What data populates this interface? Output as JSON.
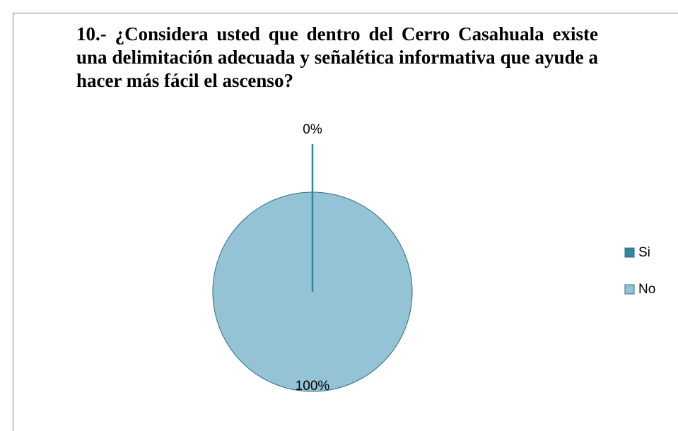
{
  "chart_data": {
    "type": "pie",
    "title": "10.- ¿Considera usted que dentro del Cerro Casahuala existe una delimitación adecuada y señalética informativa que ayude a hacer más fácil el ascenso?",
    "categories": [
      "Si",
      "No"
    ],
    "values": [
      0,
      100
    ],
    "value_labels": [
      "0%",
      "100%"
    ],
    "colors": [
      "#31859c",
      "#93c3d4"
    ],
    "legend": "right"
  }
}
